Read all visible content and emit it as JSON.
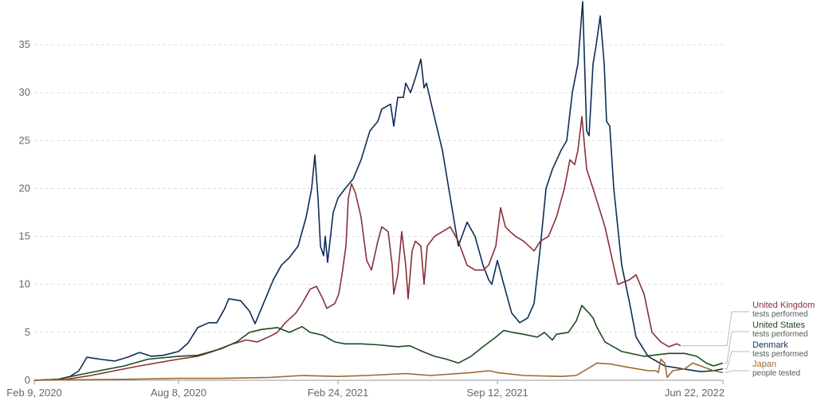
{
  "chart_data": {
    "type": "line",
    "title": "",
    "xlabel": "",
    "ylabel": "",
    "x_ticks": [
      "Feb 9, 2020",
      "Aug 8, 2020",
      "Feb 24, 2021",
      "Sep 12, 2021",
      "Jun 22, 2022"
    ],
    "xlim": [
      "2020-02-09",
      "2022-06-22"
    ],
    "y_ticks": [
      "0",
      "5",
      "10",
      "15",
      "20",
      "25",
      "30",
      "35"
    ],
    "ylim": [
      0,
      39
    ],
    "grid": "horizontal dashed",
    "legend_position": "right",
    "series": [
      {
        "name": "Denmark",
        "sub": "tests performed",
        "color": "#0d2d57",
        "points": [
          [
            "2020-02-09",
            0
          ],
          [
            "2020-03-10",
            0.1
          ],
          [
            "2020-03-25",
            0.4
          ],
          [
            "2020-04-05",
            1.0
          ],
          [
            "2020-04-15",
            2.4
          ],
          [
            "2020-05-01",
            2.2
          ],
          [
            "2020-05-20",
            2.0
          ],
          [
            "2020-06-05",
            2.4
          ],
          [
            "2020-06-20",
            2.9
          ],
          [
            "2020-07-05",
            2.5
          ],
          [
            "2020-07-20",
            2.6
          ],
          [
            "2020-08-08",
            3.0
          ],
          [
            "2020-08-20",
            3.9
          ],
          [
            "2020-09-01",
            5.5
          ],
          [
            "2020-09-15",
            6.0
          ],
          [
            "2020-09-25",
            6.0
          ],
          [
            "2020-10-05",
            7.5
          ],
          [
            "2020-10-10",
            8.5
          ],
          [
            "2020-10-25",
            8.3
          ],
          [
            "2020-11-05",
            7.2
          ],
          [
            "2020-11-12",
            5.9
          ],
          [
            "2020-11-20",
            7.5
          ],
          [
            "2020-12-05",
            10.5
          ],
          [
            "2020-12-15",
            12.0
          ],
          [
            "2020-12-25",
            12.8
          ],
          [
            "2021-01-05",
            14.0
          ],
          [
            "2021-01-15",
            17.0
          ],
          [
            "2021-01-22",
            20.0
          ],
          [
            "2021-01-26",
            23.5
          ],
          [
            "2021-01-30",
            19.0
          ],
          [
            "2021-02-02",
            14.0
          ],
          [
            "2021-02-06",
            13.0
          ],
          [
            "2021-02-08",
            15.0
          ],
          [
            "2021-02-11",
            12.3
          ],
          [
            "2021-02-18",
            17.5
          ],
          [
            "2021-02-24",
            19.0
          ],
          [
            "2021-03-05",
            20.0
          ],
          [
            "2021-03-15",
            21.0
          ],
          [
            "2021-03-25",
            23.0
          ],
          [
            "2021-04-05",
            26.0
          ],
          [
            "2021-04-15",
            27.0
          ],
          [
            "2021-04-20",
            28.3
          ],
          [
            "2021-05-01",
            28.8
          ],
          [
            "2021-05-05",
            26.5
          ],
          [
            "2021-05-10",
            29.5
          ],
          [
            "2021-05-17",
            29.5
          ],
          [
            "2021-05-20",
            31.0
          ],
          [
            "2021-05-26",
            30.0
          ],
          [
            "2021-06-01",
            31.5
          ],
          [
            "2021-06-08",
            33.5
          ],
          [
            "2021-06-12",
            30.5
          ],
          [
            "2021-06-15",
            31.0
          ],
          [
            "2021-06-22",
            28.5
          ],
          [
            "2021-07-05",
            24.0
          ],
          [
            "2021-07-15",
            19.0
          ],
          [
            "2021-07-25",
            14.0
          ],
          [
            "2021-08-05",
            16.5
          ],
          [
            "2021-08-15",
            15.0
          ],
          [
            "2021-08-25",
            12.0
          ],
          [
            "2021-09-01",
            10.5
          ],
          [
            "2021-09-05",
            10.0
          ],
          [
            "2021-09-12",
            12.5
          ],
          [
            "2021-09-20",
            10.0
          ],
          [
            "2021-09-30",
            7.0
          ],
          [
            "2021-10-10",
            6.0
          ],
          [
            "2021-10-20",
            6.5
          ],
          [
            "2021-10-28",
            8.0
          ],
          [
            "2021-11-05",
            14.0
          ],
          [
            "2021-11-12",
            20.0
          ],
          [
            "2021-11-20",
            22.0
          ],
          [
            "2021-12-01",
            24.0
          ],
          [
            "2021-12-08",
            25.0
          ],
          [
            "2021-12-15",
            30.0
          ],
          [
            "2021-12-22",
            33.0
          ],
          [
            "2021-12-28",
            39.5
          ],
          [
            "2022-01-02",
            26.0
          ],
          [
            "2022-01-05",
            25.5
          ],
          [
            "2022-01-10",
            33.0
          ],
          [
            "2022-01-14",
            35.0
          ],
          [
            "2022-01-19",
            38.0
          ],
          [
            "2022-01-24",
            33.0
          ],
          [
            "2022-01-27",
            27.0
          ],
          [
            "2022-01-31",
            26.5
          ],
          [
            "2022-02-05",
            20.0
          ],
          [
            "2022-02-15",
            12.0
          ],
          [
            "2022-02-25",
            8.0
          ],
          [
            "2022-03-05",
            4.5
          ],
          [
            "2022-03-20",
            2.5
          ],
          [
            "2022-04-10",
            1.5
          ],
          [
            "2022-05-10",
            1.1
          ],
          [
            "2022-05-25",
            0.9
          ],
          [
            "2022-06-10",
            1.0
          ],
          [
            "2022-06-22",
            1.2
          ]
        ]
      },
      {
        "name": "United Kingdom",
        "sub": "tests performed",
        "color": "#883039",
        "points": [
          [
            "2020-02-09",
            0
          ],
          [
            "2020-03-20",
            0.1
          ],
          [
            "2020-04-20",
            0.5
          ],
          [
            "2020-05-20",
            1.0
          ],
          [
            "2020-06-20",
            1.5
          ],
          [
            "2020-08-08",
            2.2
          ],
          [
            "2020-09-01",
            2.5
          ],
          [
            "2020-09-20",
            3.0
          ],
          [
            "2020-10-15",
            3.8
          ],
          [
            "2020-11-01",
            4.2
          ],
          [
            "2020-11-15",
            4.0
          ],
          [
            "2020-12-01",
            4.6
          ],
          [
            "2020-12-10",
            5.0
          ],
          [
            "2020-12-20",
            6.0
          ],
          [
            "2021-01-02",
            7.0
          ],
          [
            "2021-01-10",
            8.0
          ],
          [
            "2021-01-20",
            9.5
          ],
          [
            "2021-01-28",
            9.8
          ],
          [
            "2021-02-05",
            8.5
          ],
          [
            "2021-02-10",
            7.5
          ],
          [
            "2021-02-20",
            8.0
          ],
          [
            "2021-02-25",
            9.0
          ],
          [
            "2021-03-01",
            11.0
          ],
          [
            "2021-03-06",
            14.0
          ],
          [
            "2021-03-09",
            19.0
          ],
          [
            "2021-03-13",
            20.5
          ],
          [
            "2021-03-18",
            19.5
          ],
          [
            "2021-03-25",
            17.0
          ],
          [
            "2021-04-01",
            12.5
          ],
          [
            "2021-04-07",
            11.5
          ],
          [
            "2021-04-15",
            14.5
          ],
          [
            "2021-04-20",
            16.0
          ],
          [
            "2021-04-28",
            15.5
          ],
          [
            "2021-05-03",
            12.0
          ],
          [
            "2021-05-05",
            9.0
          ],
          [
            "2021-05-10",
            11.0
          ],
          [
            "2021-05-15",
            15.5
          ],
          [
            "2021-05-20",
            12.0
          ],
          [
            "2021-05-23",
            8.5
          ],
          [
            "2021-05-28",
            13.5
          ],
          [
            "2021-06-01",
            14.5
          ],
          [
            "2021-06-08",
            14.0
          ],
          [
            "2021-06-12",
            10.0
          ],
          [
            "2021-06-16",
            14.0
          ],
          [
            "2021-06-25",
            15.0
          ],
          [
            "2021-07-05",
            15.5
          ],
          [
            "2021-07-15",
            16.0
          ],
          [
            "2021-07-25",
            14.5
          ],
          [
            "2021-08-05",
            12.0
          ],
          [
            "2021-08-15",
            11.5
          ],
          [
            "2021-08-25",
            11.5
          ],
          [
            "2021-09-01",
            12.0
          ],
          [
            "2021-09-10",
            14.0
          ],
          [
            "2021-09-16",
            18.0
          ],
          [
            "2021-09-22",
            16.0
          ],
          [
            "2021-09-28",
            15.5
          ],
          [
            "2021-10-05",
            15.0
          ],
          [
            "2021-10-15",
            14.5
          ],
          [
            "2021-10-28",
            13.5
          ],
          [
            "2021-11-05",
            14.5
          ],
          [
            "2021-11-15",
            15.0
          ],
          [
            "2021-11-25",
            17.0
          ],
          [
            "2021-12-05",
            20.0
          ],
          [
            "2021-12-12",
            23.0
          ],
          [
            "2021-12-18",
            22.5
          ],
          [
            "2021-12-22",
            24.0
          ],
          [
            "2021-12-27",
            27.5
          ],
          [
            "2022-01-02",
            22.0
          ],
          [
            "2022-01-10",
            20.0
          ],
          [
            "2022-01-25",
            16.0
          ],
          [
            "2022-02-10",
            10.0
          ],
          [
            "2022-02-25",
            10.5
          ],
          [
            "2022-03-05",
            11.0
          ],
          [
            "2022-03-15",
            9.0
          ],
          [
            "2022-03-25",
            5.0
          ],
          [
            "2022-04-05",
            4.0
          ],
          [
            "2022-04-15",
            3.5
          ],
          [
            "2022-04-25",
            3.8
          ],
          [
            "2022-04-30",
            3.6
          ]
        ]
      },
      {
        "name": "United States",
        "sub": "tests performed",
        "color": "#1d4a1f",
        "points": [
          [
            "2020-02-09",
            0
          ],
          [
            "2020-03-10",
            0.1
          ],
          [
            "2020-04-01",
            0.5
          ],
          [
            "2020-05-01",
            1.0
          ],
          [
            "2020-06-01",
            1.5
          ],
          [
            "2020-07-01",
            2.2
          ],
          [
            "2020-08-08",
            2.5
          ],
          [
            "2020-09-01",
            2.6
          ],
          [
            "2020-10-01",
            3.3
          ],
          [
            "2020-10-20",
            4.0
          ],
          [
            "2020-11-05",
            5.0
          ],
          [
            "2020-11-20",
            5.3
          ],
          [
            "2020-12-10",
            5.5
          ],
          [
            "2020-12-25",
            5.0
          ],
          [
            "2021-01-10",
            5.6
          ],
          [
            "2021-01-20",
            5.0
          ],
          [
            "2021-02-05",
            4.7
          ],
          [
            "2021-02-20",
            4.0
          ],
          [
            "2021-03-05",
            3.8
          ],
          [
            "2021-03-25",
            3.8
          ],
          [
            "2021-04-15",
            3.7
          ],
          [
            "2021-05-10",
            3.5
          ],
          [
            "2021-05-25",
            3.6
          ],
          [
            "2021-06-10",
            3.0
          ],
          [
            "2021-06-25",
            2.5
          ],
          [
            "2021-07-10",
            2.2
          ],
          [
            "2021-07-25",
            1.8
          ],
          [
            "2021-08-10",
            2.5
          ],
          [
            "2021-08-25",
            3.5
          ],
          [
            "2021-09-10",
            4.5
          ],
          [
            "2021-09-20",
            5.2
          ],
          [
            "2021-10-01",
            5.0
          ],
          [
            "2021-10-15",
            4.8
          ],
          [
            "2021-11-01",
            4.5
          ],
          [
            "2021-11-10",
            5.0
          ],
          [
            "2021-11-20",
            4.2
          ],
          [
            "2021-11-25",
            4.8
          ],
          [
            "2021-12-10",
            5.0
          ],
          [
            "2021-12-20",
            6.2
          ],
          [
            "2021-12-27",
            7.8
          ],
          [
            "2022-01-05",
            7.0
          ],
          [
            "2022-01-10",
            6.5
          ],
          [
            "2022-01-15",
            5.5
          ],
          [
            "2022-01-25",
            4.0
          ],
          [
            "2022-02-15",
            3.0
          ],
          [
            "2022-03-15",
            2.5
          ],
          [
            "2022-04-15",
            2.8
          ],
          [
            "2022-05-05",
            2.8
          ],
          [
            "2022-05-20",
            2.5
          ],
          [
            "2022-06-01",
            1.8
          ],
          [
            "2022-06-10",
            1.5
          ],
          [
            "2022-06-22",
            1.8
          ]
        ]
      },
      {
        "name": "Japan",
        "sub": "people tested",
        "color": "#9a6a2f",
        "points": [
          [
            "2020-02-09",
            0
          ],
          [
            "2020-04-01",
            0.05
          ],
          [
            "2020-06-01",
            0.1
          ],
          [
            "2020-08-08",
            0.2
          ],
          [
            "2020-10-01",
            0.2
          ],
          [
            "2020-12-01",
            0.3
          ],
          [
            "2021-01-10",
            0.5
          ],
          [
            "2021-02-24",
            0.4
          ],
          [
            "2021-04-01",
            0.5
          ],
          [
            "2021-05-20",
            0.7
          ],
          [
            "2021-06-20",
            0.5
          ],
          [
            "2021-08-10",
            0.8
          ],
          [
            "2021-09-01",
            1.0
          ],
          [
            "2021-09-12",
            0.8
          ],
          [
            "2021-10-15",
            0.5
          ],
          [
            "2021-12-01",
            0.4
          ],
          [
            "2021-12-20",
            0.5
          ],
          [
            "2022-01-15",
            1.8
          ],
          [
            "2022-02-01",
            1.7
          ],
          [
            "2022-02-20",
            1.4
          ],
          [
            "2022-03-20",
            1.0
          ],
          [
            "2022-03-30",
            1.0
          ],
          [
            "2022-04-02",
            0.8
          ],
          [
            "2022-04-05",
            2.2
          ],
          [
            "2022-04-10",
            1.8
          ],
          [
            "2022-04-13",
            0.3
          ],
          [
            "2022-04-20",
            1.0
          ],
          [
            "2022-05-05",
            1.2
          ],
          [
            "2022-05-15",
            1.8
          ],
          [
            "2022-05-25",
            1.5
          ],
          [
            "2022-06-10",
            1.0
          ],
          [
            "2022-06-22",
            0.8
          ]
        ]
      }
    ]
  }
}
